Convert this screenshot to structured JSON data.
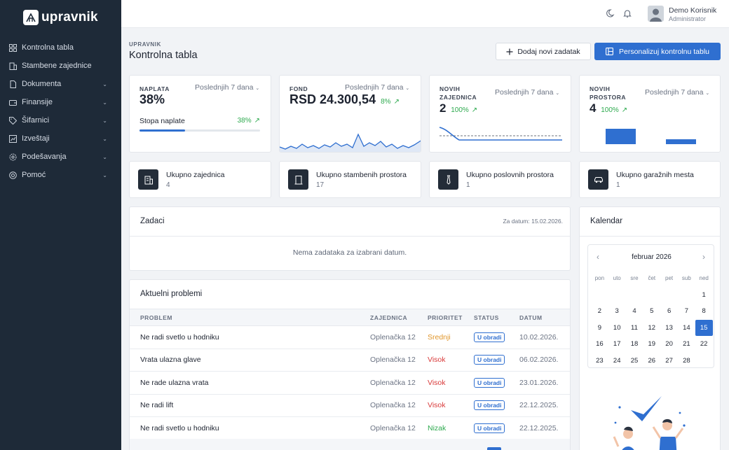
{
  "brand": {
    "name": "upravnik"
  },
  "sidebar": {
    "items": [
      {
        "label": "Kontrolna tabla",
        "icon": "dashboard-icon",
        "expandable": false
      },
      {
        "label": "Stambene zajednice",
        "icon": "building-icon",
        "expandable": false
      },
      {
        "label": "Dokumenta",
        "icon": "document-icon",
        "expandable": true
      },
      {
        "label": "Finansije",
        "icon": "wallet-icon",
        "expandable": true
      },
      {
        "label": "Šifarnici",
        "icon": "tag-icon",
        "expandable": true
      },
      {
        "label": "Izveštaji",
        "icon": "chart-icon",
        "expandable": true
      },
      {
        "label": "Podešavanja",
        "icon": "gear-icon",
        "expandable": true
      },
      {
        "label": "Pomoć",
        "icon": "help-icon",
        "expandable": true
      }
    ]
  },
  "topbar": {
    "user_name": "Demo Korisnik",
    "user_role": "Administrator"
  },
  "header": {
    "eyebrow": "UPRAVNIK",
    "title": "Kontrolna tabla",
    "add_task_label": "Dodaj novi zadatak",
    "customize_label": "Personalizuj kontrolnu tablu"
  },
  "stats": {
    "naplata": {
      "label": "NAPLATA",
      "period": "Poslednjih 7 dana",
      "value": "38%",
      "sub_label": "Stopa naplate",
      "sub_value": "38%",
      "progress": 0.38
    },
    "fond": {
      "label": "FOND",
      "period": "Poslednjih 7 dana",
      "value": "RSD 24.300,54",
      "delta": "8%"
    },
    "zajednice": {
      "label_line1": "NOVIH",
      "label_line2": "ZAJEDNICA",
      "period": "Poslednjih 7 dana",
      "value": "2",
      "delta": "100%"
    },
    "prostora": {
      "label_line1": "NOVIH",
      "label_line2": "PROSTORA",
      "period": "Poslednjih 7 dana",
      "value": "4",
      "delta": "100%"
    }
  },
  "summary": [
    {
      "title": "Ukupno zajednica",
      "count": "4",
      "icon": "building-icon"
    },
    {
      "title": "Ukupno stambenih prostora",
      "count": "17",
      "icon": "door-icon"
    },
    {
      "title": "Ukupno poslovnih prostora",
      "count": "1",
      "icon": "tie-icon"
    },
    {
      "title": "Ukupno garažnih mesta",
      "count": "1",
      "icon": "car-icon"
    }
  ],
  "tasks": {
    "title": "Zadaci",
    "date_label": "Za datum: 15.02.2026.",
    "empty_text": "Nema zadataka za izabrani datum."
  },
  "problems": {
    "title": "Aktuelni problemi",
    "headers": [
      "PROBLEM",
      "ZAJEDNICA",
      "PRIORITET",
      "STATUS",
      "DATUM"
    ],
    "rows": [
      {
        "problem": "Ne radi svetlo u hodniku",
        "zajednica": "Oplenačka 12",
        "prioritet": "Srednji",
        "status": "U obradi",
        "datum": "10.02.2026."
      },
      {
        "problem": "Vrata ulazna glave",
        "zajednica": "Oplenačka 12",
        "prioritet": "Visok",
        "status": "U obradi",
        "datum": "06.02.2026."
      },
      {
        "problem": "Ne rade ulazna vrata",
        "zajednica": "Oplenačka 12",
        "prioritet": "Visok",
        "status": "U obradi",
        "datum": "23.01.2026."
      },
      {
        "problem": "Ne radi lift",
        "zajednica": "Oplenačka 12",
        "prioritet": "Visok",
        "status": "U obradi",
        "datum": "22.12.2025."
      },
      {
        "problem": "Ne radi svetlo u hodniku",
        "zajednica": "Oplenačka 12",
        "prioritet": "Nizak",
        "status": "U obradi",
        "datum": "22.12.2025."
      }
    ]
  },
  "calendar": {
    "title": "Kalendar",
    "month": "februar 2026",
    "days_of_week": [
      "pon",
      "uto",
      "sre",
      "čet",
      "pet",
      "sub",
      "ned"
    ],
    "selected_day": "15",
    "weeks": [
      [
        "",
        "",
        "",
        "",
        "",
        "",
        "1"
      ],
      [
        "2",
        "3",
        "4",
        "5",
        "6",
        "7",
        "8"
      ],
      [
        "9",
        "10",
        "11",
        "12",
        "13",
        "14",
        "15"
      ],
      [
        "16",
        "17",
        "18",
        "19",
        "20",
        "21",
        "22"
      ],
      [
        "23",
        "24",
        "25",
        "26",
        "27",
        "28",
        ""
      ]
    ]
  },
  "colors": {
    "sidebar": "#1e2a38",
    "primary": "#2f6fd0",
    "success": "#2eaa4f",
    "medium": "#e0962b",
    "high": "#d93a3a",
    "low": "#2eaa4f"
  }
}
